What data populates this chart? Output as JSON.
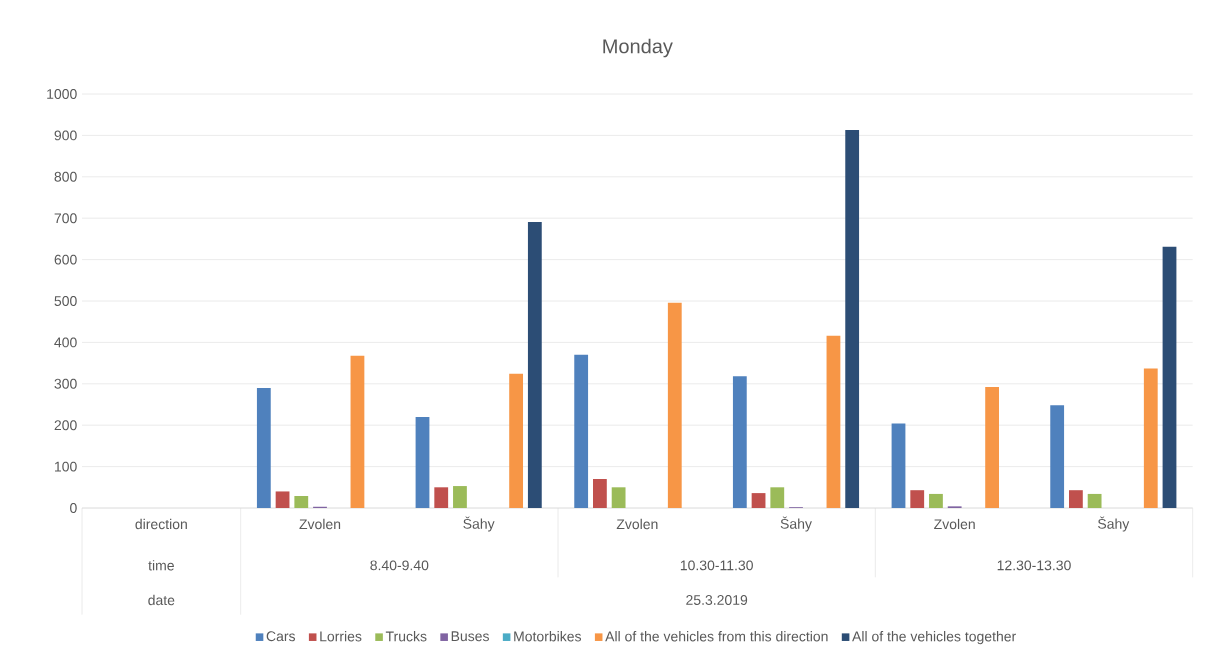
{
  "chart_data": {
    "type": "bar",
    "title": "Monday",
    "categories": [
      "direction",
      "Zvolen",
      "Šahy",
      "Zvolen",
      "Šahy",
      "Zvolen",
      "Šahy"
    ],
    "series": [
      {
        "name": "Cars",
        "color": "#4f81bd",
        "values": [
          null,
          290,
          220,
          370,
          318,
          204,
          248
        ]
      },
      {
        "name": "Lorries",
        "color": "#c0504d",
        "values": [
          null,
          40,
          50,
          70,
          36,
          43,
          43
        ]
      },
      {
        "name": "Trucks",
        "color": "#9bbb59",
        "values": [
          null,
          29,
          53,
          50,
          50,
          34,
          34
        ]
      },
      {
        "name": "Buses",
        "color": "#8064a2",
        "values": [
          null,
          3,
          0,
          0,
          2,
          4,
          0
        ]
      },
      {
        "name": "Motorbikes",
        "color": "#4bacc6",
        "values": [
          null,
          0,
          0,
          0,
          0,
          0,
          0
        ]
      },
      {
        "name": "All of the vehicles from this direction",
        "color": "#f79646",
        "values": [
          null,
          368,
          324,
          496,
          416,
          292,
          337
        ]
      },
      {
        "name": "All of the vehicles together",
        "color": "#2c4d75",
        "values": [
          null,
          null,
          691,
          null,
          913,
          null,
          631
        ]
      }
    ],
    "ylim": [
      0,
      1000
    ],
    "yticks": [
      0,
      100,
      200,
      300,
      400,
      500,
      600,
      700,
      800,
      900,
      1000
    ],
    "grid": "y",
    "legend": "bottom",
    "annotations": [
      "time",
      "date",
      "8.40-9.40",
      "10.30-11.30",
      "12.30-13.30",
      "25.3.2019"
    ]
  }
}
